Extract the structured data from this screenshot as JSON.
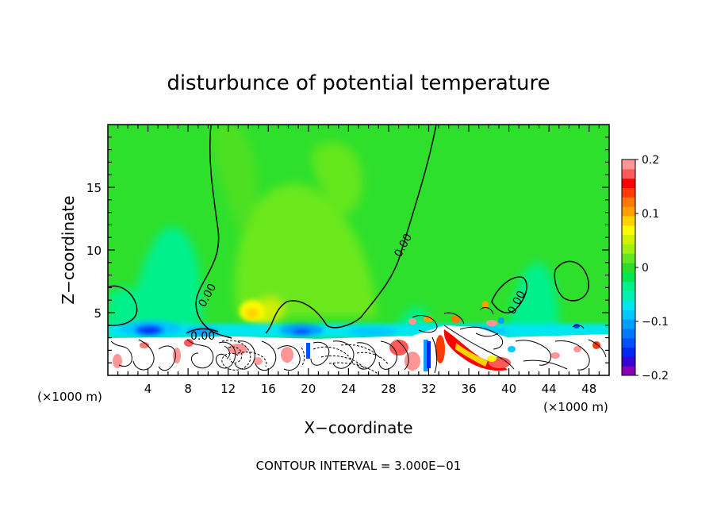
{
  "chart_data": {
    "type": "heatmap",
    "title": "disturbunce of potential temperature",
    "xlabel": "X−coordinate",
    "ylabel": "Z−coordinate",
    "x_unit_left": "(×1000 m)",
    "x_unit_right": "(×1000 m)",
    "xlim": [
      0,
      50
    ],
    "ylim": [
      0,
      20
    ],
    "x_ticks": [
      4,
      8,
      12,
      16,
      20,
      24,
      28,
      32,
      36,
      40,
      44,
      48
    ],
    "x_tick_labels": [
      "4",
      "8",
      "12",
      "16",
      "20",
      "24",
      "28",
      "32",
      "36",
      "40",
      "44",
      "48"
    ],
    "y_ticks": [
      5,
      10,
      15
    ],
    "y_tick_labels": [
      "5",
      "10",
      "15"
    ],
    "contour_labels": [
      "0.00",
      "0.00",
      "0.00",
      "0.00"
    ],
    "colorbar": {
      "min": -0.2,
      "max": 0.2,
      "ticks": [
        0.2,
        0.1,
        0,
        -0.1,
        -0.2
      ],
      "tick_labels": [
        "0.2",
        "0.1",
        "0",
        "−0.1",
        "−0.2"
      ],
      "colors": [
        "#8a00b4",
        "#3c00d2",
        "#0028f0",
        "#0050ff",
        "#0078ff",
        "#00a0ff",
        "#00c8ff",
        "#00e6f0",
        "#00f0b4",
        "#00f08c",
        "#00e650",
        "#2cdc28",
        "#64e61e",
        "#a0f014",
        "#d2f000",
        "#fafa00",
        "#ffd200",
        "#ffa000",
        "#ff7800",
        "#ff3c00",
        "#ff0000",
        "#ff5a5a",
        "#ff9696"
      ]
    },
    "footer": "CONTOUR INTERVAL = 3.000E−01"
  }
}
